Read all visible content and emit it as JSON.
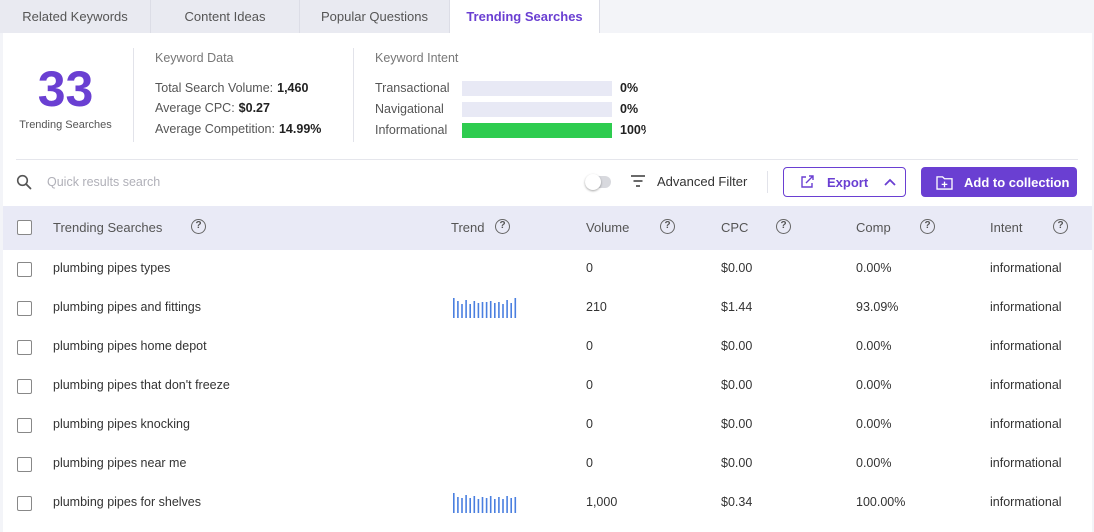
{
  "tabs": [
    {
      "label": "Related Keywords"
    },
    {
      "label": "Content Ideas"
    },
    {
      "label": "Popular Questions"
    },
    {
      "label": "Trending Searches"
    }
  ],
  "summary": {
    "count": "33",
    "count_label": "Trending Searches",
    "keyword_data": {
      "title": "Keyword Data",
      "total_volume_label": "Total Search Volume:",
      "total_volume": "1,460",
      "avg_cpc_label": "Average CPC:",
      "avg_cpc": "$0.27",
      "avg_comp_label": "Average Competition:",
      "avg_comp": "14.99%"
    },
    "keyword_intent": {
      "title": "Keyword Intent",
      "items": [
        {
          "label": "Transactional",
          "pct": "0%",
          "value": 0
        },
        {
          "label": "Navigational",
          "pct": "0%",
          "value": 0
        },
        {
          "label": "Informational",
          "pct": "100%",
          "value": 100
        }
      ],
      "bar_color": "#2ecc4f"
    }
  },
  "toolbar": {
    "search_placeholder": "Quick results search",
    "advanced_filter_label": "Advanced Filter",
    "export_label": "Export",
    "add_label": "Add to collection"
  },
  "colors": {
    "accent": "#6a3fd2",
    "spark": "#4a7fe0"
  },
  "table": {
    "columns": {
      "keyword": "Trending Searches",
      "trend": "Trend",
      "volume": "Volume",
      "cpc": "CPC",
      "comp": "Comp",
      "intent": "Intent"
    },
    "rows": [
      {
        "keyword": "plumbing pipes types",
        "volume": "0",
        "cpc": "$0.00",
        "comp": "0.00%",
        "intent": "informational",
        "trend": []
      },
      {
        "keyword": "plumbing pipes and fittings",
        "volume": "210",
        "cpc": "$1.44",
        "comp": "93.09%",
        "intent": "informational",
        "trend": [
          1.0,
          0.85,
          0.7,
          0.9,
          0.7,
          0.85,
          0.75,
          0.8,
          0.8,
          0.85,
          0.75,
          0.8,
          0.7,
          0.9,
          0.75,
          1.0
        ]
      },
      {
        "keyword": "plumbing pipes home depot",
        "volume": "0",
        "cpc": "$0.00",
        "comp": "0.00%",
        "intent": "informational",
        "trend": []
      },
      {
        "keyword": "plumbing pipes that don't freeze",
        "volume": "0",
        "cpc": "$0.00",
        "comp": "0.00%",
        "intent": "informational",
        "trend": []
      },
      {
        "keyword": "plumbing pipes knocking",
        "volume": "0",
        "cpc": "$0.00",
        "comp": "0.00%",
        "intent": "informational",
        "trend": []
      },
      {
        "keyword": "plumbing pipes near me",
        "volume": "0",
        "cpc": "$0.00",
        "comp": "0.00%",
        "intent": "informational",
        "trend": []
      },
      {
        "keyword": "plumbing pipes for shelves",
        "volume": "1,000",
        "cpc": "$0.34",
        "comp": "100.00%",
        "intent": "informational",
        "trend": [
          1.0,
          0.8,
          0.75,
          0.9,
          0.75,
          0.85,
          0.7,
          0.8,
          0.75,
          0.85,
          0.7,
          0.8,
          0.7,
          0.85,
          0.75,
          0.8
        ]
      }
    ]
  }
}
